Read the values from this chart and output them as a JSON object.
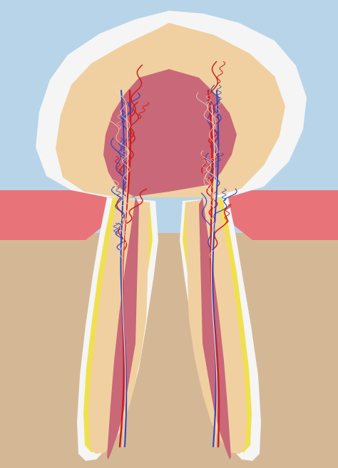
{
  "bg_color": "#b8d4e8",
  "bone_color": "#d4b896",
  "gum_color": "#e8747a",
  "enamel_color": "#f5f5f5",
  "dentin_color": "#f0d0a0",
  "cementum_color": "#f0e050",
  "pulp_color": "#c86878",
  "pdl_color": "#e8a0a8",
  "artery_color": "#cc2020",
  "vein_color": "#3344bb",
  "nerve_color": "#f0d8c0",
  "figsize": [
    4.74,
    6.57
  ],
  "dpi": 100
}
